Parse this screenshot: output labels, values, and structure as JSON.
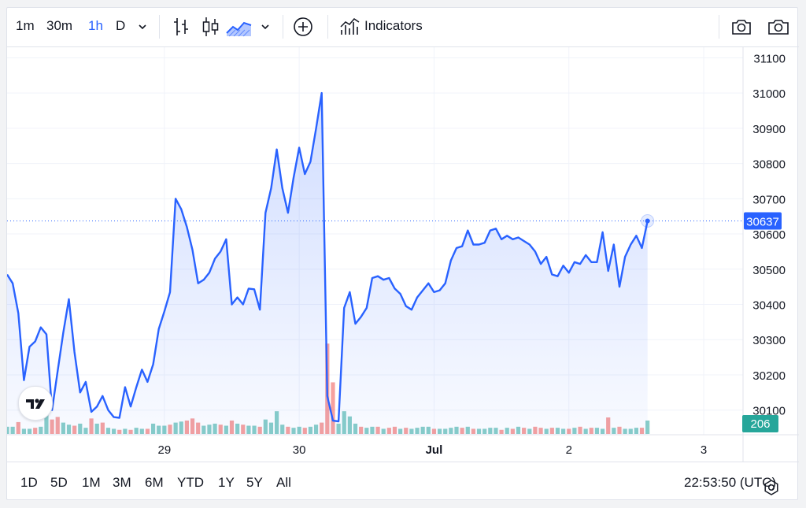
{
  "toolbar": {
    "intervals": [
      "1m",
      "30m",
      "1h",
      "D"
    ],
    "active_interval": "1h",
    "indicators_label": "Indicators"
  },
  "range_buttons": [
    "1D",
    "5D",
    "1M",
    "3M",
    "6M",
    "YTD",
    "1Y",
    "5Y",
    "All"
  ],
  "clock": "22:53:50 (UTC)",
  "colors": {
    "line": "#2962ff",
    "volume_up": "#26a69a",
    "volume_down": "#ef5350",
    "grid": "#f0f3fa"
  },
  "chart_data": {
    "type": "area",
    "price_axis_ticks": [
      "31100",
      "31000",
      "30900",
      "30800",
      "30700",
      "30600",
      "30500",
      "30400",
      "30300",
      "30200",
      "30100"
    ],
    "time_axis_ticks": [
      {
        "label": "29",
        "bold": false,
        "x": 28
      },
      {
        "label": "30",
        "bold": false,
        "x": 52
      },
      {
        "label": "Jul",
        "bold": true,
        "x": 76
      },
      {
        "label": "2",
        "bold": false,
        "x": 100
      },
      {
        "label": "3",
        "bold": false,
        "x": 124
      }
    ],
    "ylim": [
      30030,
      31130
    ],
    "xlim": [
      0,
      131
    ],
    "last_price": "30637",
    "last_volume": "206",
    "price": [
      30485,
      30460,
      30375,
      30185,
      30280,
      30295,
      30335,
      30315,
      30100,
      30210,
      30320,
      30415,
      30265,
      30150,
      30180,
      30095,
      30110,
      30140,
      30100,
      30080,
      30078,
      30165,
      30110,
      30165,
      30215,
      30180,
      30230,
      30330,
      30380,
      30435,
      30700,
      30670,
      30620,
      30555,
      30460,
      30470,
      30490,
      30530,
      30550,
      30585,
      30400,
      30420,
      30400,
      30445,
      30443,
      30385,
      30660,
      30730,
      30840,
      30730,
      30660,
      30760,
      30845,
      30770,
      30805,
      30900,
      31000,
      30140,
      30070,
      30068,
      30390,
      30435,
      30345,
      30365,
      30390,
      30475,
      30480,
      30470,
      30475,
      30445,
      30430,
      30395,
      30385,
      30420,
      30440,
      30460,
      30435,
      30440,
      30460,
      30525,
      30560,
      30565,
      30610,
      30570,
      30570,
      30575,
      30610,
      30615,
      30585,
      30595,
      30585,
      30590,
      30580,
      30570,
      30550,
      30515,
      30535,
      30485,
      30480,
      30510,
      30490,
      30520,
      30515,
      30540,
      30520,
      30520,
      30605,
      30495,
      30570,
      30450,
      30535,
      30570,
      30595,
      30560,
      30637
    ],
    "volume": [
      14,
      14,
      23,
      10,
      10,
      12,
      14,
      40,
      28,
      33,
      22,
      18,
      16,
      20,
      12,
      30,
      20,
      22,
      12,
      10,
      8,
      10,
      8,
      12,
      10,
      10,
      20,
      16,
      16,
      18,
      22,
      24,
      26,
      30,
      22,
      16,
      18,
      20,
      18,
      16,
      26,
      20,
      18,
      16,
      16,
      14,
      28,
      22,
      44,
      18,
      14,
      12,
      14,
      12,
      14,
      18,
      22,
      175,
      100,
      20,
      44,
      34,
      20,
      14,
      12,
      14,
      14,
      10,
      12,
      14,
      10,
      12,
      10,
      12,
      14,
      14,
      10,
      10,
      10,
      12,
      14,
      12,
      14,
      10,
      10,
      10,
      12,
      12,
      8,
      12,
      10,
      14,
      12,
      10,
      14,
      12,
      10,
      12,
      12,
      10,
      10,
      12,
      14,
      10,
      12,
      12,
      10,
      32,
      12,
      14,
      10,
      10,
      12,
      12,
      26
    ],
    "volume_up": [
      1,
      1,
      0,
      1,
      1,
      0,
      1,
      1,
      0,
      0,
      1,
      1,
      0,
      1,
      1,
      0,
      1,
      0,
      1,
      1,
      0,
      1,
      0,
      1,
      1,
      0,
      1,
      1,
      1,
      0,
      1,
      1,
      0,
      0,
      0,
      1,
      1,
      1,
      0,
      1,
      0,
      1,
      0,
      1,
      1,
      0,
      1,
      1,
      1,
      1,
      0,
      1,
      1,
      0,
      1,
      1,
      0,
      0,
      0,
      1,
      1,
      1,
      1,
      0,
      1,
      1,
      0,
      1,
      0,
      0,
      1,
      0,
      1,
      1,
      1,
      1,
      0,
      1,
      1,
      1,
      1,
      0,
      1,
      0,
      1,
      1,
      1,
      1,
      0,
      1,
      0,
      1,
      0,
      1,
      0,
      0,
      1,
      0,
      1,
      1,
      0,
      1,
      0,
      1,
      0,
      1,
      1,
      0,
      1,
      0,
      1,
      1,
      1,
      0,
      1
    ]
  }
}
